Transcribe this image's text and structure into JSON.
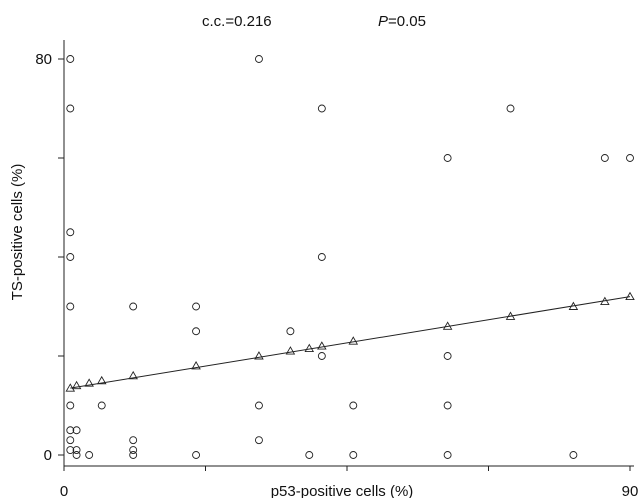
{
  "chart_data": {
    "type": "scatter",
    "annotations": {
      "cc": "c.c.=0.216",
      "p_label": "P",
      "p_value": "=0.05"
    },
    "xlabel": "p53-positive cells (%)",
    "ylabel": "TS-positive cells (%)",
    "xlim": [
      0,
      90
    ],
    "ylim": [
      0,
      80
    ],
    "x_ticks": [
      0,
      90
    ],
    "y_ticks": [
      0,
      80
    ],
    "grid": false,
    "series": [
      {
        "marker": "circle",
        "points": [
          [
            1,
            80
          ],
          [
            1,
            70
          ],
          [
            1,
            45
          ],
          [
            1,
            40
          ],
          [
            1,
            30
          ],
          [
            1,
            10
          ],
          [
            1,
            5
          ],
          [
            2,
            5
          ],
          [
            1,
            3
          ],
          [
            1,
            1
          ],
          [
            2,
            1
          ],
          [
            2,
            0
          ],
          [
            4,
            0
          ],
          [
            6,
            10
          ],
          [
            11,
            30
          ],
          [
            11,
            3
          ],
          [
            11,
            1
          ],
          [
            11,
            0
          ],
          [
            21,
            30
          ],
          [
            21,
            25
          ],
          [
            21,
            0
          ],
          [
            31,
            80
          ],
          [
            31,
            10
          ],
          [
            31,
            3
          ],
          [
            36,
            25
          ],
          [
            39,
            0
          ],
          [
            41,
            70
          ],
          [
            41,
            40
          ],
          [
            41,
            20
          ],
          [
            46,
            10
          ],
          [
            46,
            0
          ],
          [
            61,
            60
          ],
          [
            61,
            20
          ],
          [
            61,
            10
          ],
          [
            61,
            0
          ],
          [
            71,
            70
          ],
          [
            81,
            0
          ],
          [
            86,
            60
          ],
          [
            90,
            60
          ]
        ]
      },
      {
        "marker": "triangle",
        "points": [
          [
            1,
            13.5
          ],
          [
            2,
            14
          ],
          [
            4,
            14.5
          ],
          [
            6,
            15
          ],
          [
            11,
            16
          ],
          [
            21,
            18
          ],
          [
            31,
            20
          ],
          [
            36,
            21
          ],
          [
            39,
            21.5
          ],
          [
            41,
            22
          ],
          [
            46,
            23
          ],
          [
            61,
            26
          ],
          [
            71,
            28
          ],
          [
            81,
            30
          ],
          [
            86,
            31
          ],
          [
            90,
            32
          ]
        ]
      }
    ],
    "regression_line": {
      "x": [
        1,
        90
      ],
      "y": [
        13.5,
        32
      ]
    }
  }
}
